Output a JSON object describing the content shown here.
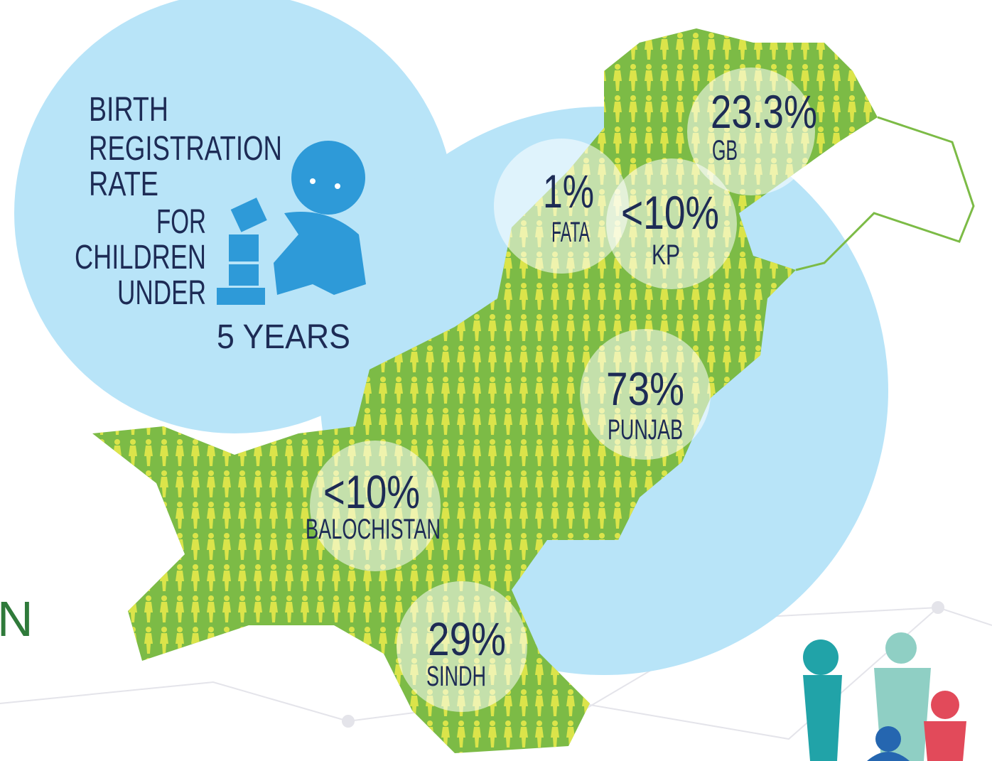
{
  "title": {
    "lines": [
      "BIRTH",
      "REGISTRATION",
      "RATE",
      "FOR",
      "CHILDREN",
      "UNDER"
    ],
    "years": "5 YEARS"
  },
  "side_text": "N",
  "regions": [
    {
      "rate": "23.3%",
      "name": "GB"
    },
    {
      "rate": "1%",
      "name": "FATA"
    },
    {
      "rate": "<10%",
      "name": "KP"
    },
    {
      "rate": "73%",
      "name": "PUNJAB"
    },
    {
      "rate": "<10%",
      "name": "BALOCHISTAN"
    },
    {
      "rate": "29%",
      "name": "SINDH"
    }
  ]
}
